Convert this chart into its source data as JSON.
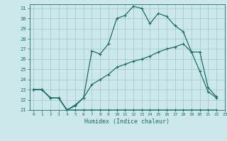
{
  "title": "",
  "xlabel": "Humidex (Indice chaleur)",
  "bg_color": "#cce8ea",
  "grid_color": "#9fc8cc",
  "line_color": "#1a6e6a",
  "xlim": [
    -0.5,
    23
  ],
  "ylim": [
    21,
    31.4
  ],
  "xticks": [
    0,
    1,
    2,
    3,
    4,
    5,
    6,
    7,
    8,
    9,
    10,
    11,
    12,
    13,
    14,
    15,
    16,
    17,
    18,
    19,
    20,
    21,
    22,
    23
  ],
  "yticks": [
    21,
    22,
    23,
    24,
    25,
    26,
    27,
    28,
    29,
    30,
    31
  ],
  "line1_x": [
    0,
    1,
    2,
    3,
    4,
    5,
    6,
    7,
    8,
    9,
    10,
    11,
    12,
    13,
    14,
    15,
    16,
    17,
    18,
    19,
    20,
    21,
    22
  ],
  "line1_y": [
    23.0,
    23.0,
    22.2,
    22.2,
    21.0,
    21.4,
    22.2,
    26.8,
    26.5,
    27.5,
    30.0,
    30.3,
    31.2,
    31.0,
    29.5,
    30.5,
    30.2,
    29.3,
    28.7,
    26.7,
    24.8,
    22.8,
    22.2
  ],
  "line2_x": [
    0,
    1,
    2,
    3,
    4,
    5,
    6,
    7,
    8,
    9,
    10,
    11,
    12,
    13,
    14,
    15,
    16,
    17,
    18,
    19,
    20,
    21,
    22
  ],
  "line2_y": [
    23.0,
    23.0,
    22.2,
    22.2,
    21.0,
    21.5,
    22.2,
    23.5,
    24.0,
    24.5,
    25.2,
    25.5,
    25.8,
    26.0,
    26.3,
    26.7,
    27.0,
    27.2,
    27.5,
    26.7,
    26.7,
    23.2,
    22.3
  ],
  "line3_x": [
    0,
    1,
    2,
    3,
    4,
    5,
    6,
    7,
    8,
    9,
    10,
    11,
    12,
    13,
    14,
    15,
    16,
    17,
    18,
    19,
    20,
    21,
    22
  ],
  "line3_y": [
    23.0,
    23.0,
    22.2,
    22.2,
    21.0,
    21.0,
    21.0,
    21.0,
    21.0,
    21.0,
    21.0,
    21.0,
    21.0,
    21.0,
    21.0,
    21.0,
    21.0,
    21.0,
    21.0,
    21.0,
    21.0,
    21.0,
    21.0
  ]
}
